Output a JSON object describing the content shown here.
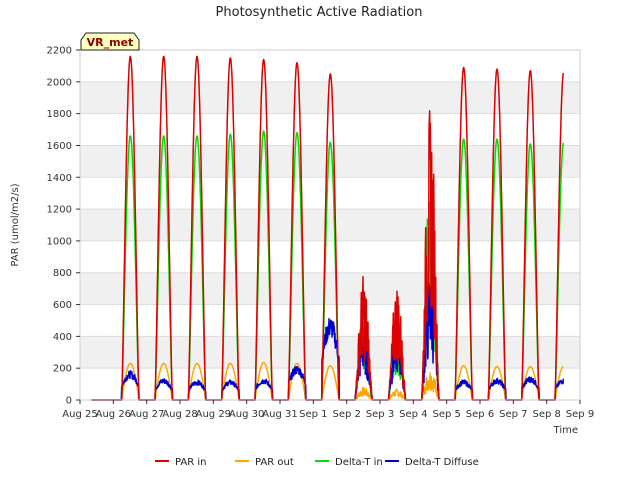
{
  "chart_data": {
    "type": "line",
    "title": "Photosynthetic Active Radiation",
    "xlabel": "Time",
    "ylabel": "PAR (umol/m2/s)",
    "ylim": [
      0,
      2200
    ],
    "yticks": [
      0,
      200,
      400,
      600,
      800,
      1000,
      1200,
      1400,
      1600,
      1800,
      2000,
      2200
    ],
    "xlim": [
      0,
      15
    ],
    "xtick_labels": [
      "Aug 25",
      "Aug 26",
      "Aug 27",
      "Aug 28",
      "Aug 29",
      "Aug 30",
      "Aug 31",
      "Sep 1",
      "Sep 2",
      "Sep 3",
      "Sep 4",
      "Sep 5",
      "Sep 6",
      "Sep 7",
      "Sep 8",
      "Sep 9"
    ],
    "grid": "horizontal bands",
    "legend_position": "bottom",
    "annotation": "VR_met",
    "days": [
      "Aug 26",
      "Aug 27",
      "Aug 28",
      "Aug 29",
      "Aug 30",
      "Aug 31",
      "Sep 1",
      "Sep 2",
      "Sep 3",
      "Sep 4",
      "Sep 5",
      "Sep 6",
      "Sep 7",
      "Sep 8"
    ],
    "series": [
      {
        "name": "PAR in",
        "color": "#dd0000",
        "daily_peak": [
          2160,
          2160,
          2160,
          2150,
          2140,
          2120,
          2050,
          800,
          750,
          1850,
          2090,
          2080,
          2070,
          2060
        ]
      },
      {
        "name": "PAR out",
        "color": "#ffa500",
        "daily_peak": [
          230,
          230,
          230,
          230,
          235,
          230,
          215,
          80,
          70,
          200,
          215,
          210,
          210,
          210
        ]
      },
      {
        "name": "Delta-T in",
        "color": "#00dd00",
        "daily_peak": [
          1660,
          1660,
          1660,
          1670,
          1690,
          1680,
          1620,
          560,
          520,
          1420,
          1640,
          1640,
          1610,
          1620
        ]
      },
      {
        "name": "Delta-T Diffuse",
        "color": "#0000cc",
        "daily_peak": [
          160,
          120,
          110,
          110,
          120,
          190,
          460,
          520,
          520,
          840,
          110,
          120,
          130,
          120
        ]
      }
    ]
  }
}
